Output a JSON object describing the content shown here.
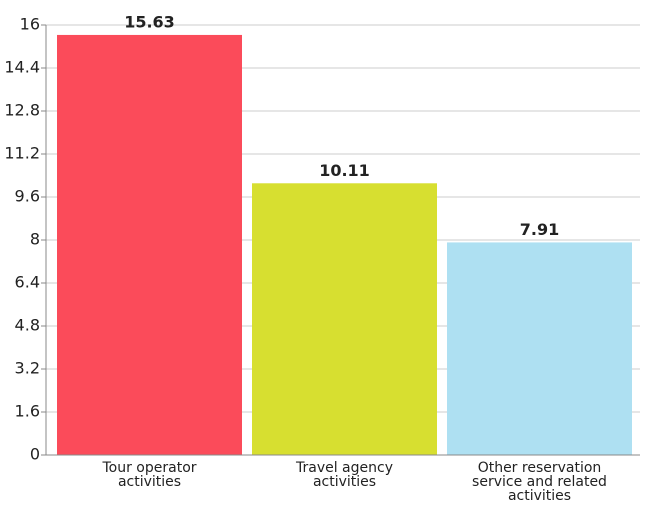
{
  "chart_data": {
    "type": "bar",
    "categories": [
      "Tour operator activities",
      "Travel agency activities",
      "Other reservation service and related activities"
    ],
    "values": [
      15.63,
      10.11,
      7.91
    ],
    "colors": [
      "#fb4b5a",
      "#d7df30",
      "#aee0f2"
    ],
    "ylim": [
      0,
      16
    ],
    "yticks": [
      0,
      1.6,
      3.2,
      4.8,
      6.4,
      8,
      9.6,
      11.2,
      12.8,
      14.4,
      16
    ],
    "grid": true
  }
}
